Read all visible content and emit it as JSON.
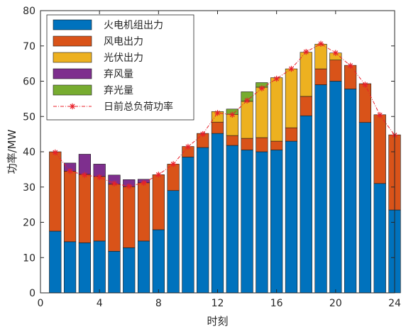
{
  "chart_data": {
    "type": "bar",
    "stacked": true,
    "xlabel": "时刻",
    "ylabel": "功率/MW",
    "xlim": [
      0,
      24
    ],
    "ylim": [
      0,
      80
    ],
    "xticks": [
      0,
      4,
      8,
      12,
      16,
      20,
      24
    ],
    "yticks": [
      0,
      10,
      20,
      30,
      40,
      50,
      60,
      70,
      80
    ],
    "grid": false,
    "legend_position": "top-left",
    "x": [
      1,
      2,
      3,
      4,
      5,
      6,
      7,
      8,
      9,
      10,
      11,
      12,
      13,
      14,
      15,
      16,
      17,
      18,
      19,
      20,
      21,
      22,
      23,
      24
    ],
    "series": [
      {
        "name": "火电机组出力",
        "color": "#0072BD",
        "values": [
          17.5,
          14.5,
          14.2,
          14.7,
          11.8,
          12.8,
          14.7,
          17.9,
          29.0,
          38.5,
          41.2,
          45.2,
          41.8,
          40.5,
          40.0,
          40.5,
          43.0,
          50.2,
          59.0,
          60.0,
          57.8,
          48.3,
          31.0,
          23.5
        ]
      },
      {
        "name": "风电出力",
        "color": "#D95319",
        "values": [
          22.5,
          20.0,
          19.4,
          18.3,
          19.0,
          17.3,
          16.5,
          15.6,
          7.5,
          3.0,
          4.0,
          3.2,
          2.8,
          3.3,
          4.0,
          2.5,
          3.8,
          5.5,
          4.5,
          6.0,
          6.7,
          11.0,
          19.5,
          21.3
        ]
      },
      {
        "name": "光伏出力",
        "color": "#EDB120",
        "values": [
          0,
          0,
          0,
          0,
          0,
          0,
          0,
          0,
          0,
          0,
          0,
          3.0,
          6.0,
          10.5,
          14.3,
          18.0,
          16.7,
          12.5,
          7.0,
          2.0,
          0,
          0,
          0,
          0
        ]
      },
      {
        "name": "弃风量",
        "color": "#7E2F8E",
        "values": [
          0,
          2.3,
          5.7,
          3.5,
          2.6,
          2.0,
          1.0,
          0,
          0,
          0,
          0,
          0,
          0,
          0,
          0,
          0,
          0,
          0,
          0,
          0,
          0,
          0,
          0,
          0
        ]
      },
      {
        "name": "弃光量",
        "color": "#77AC30",
        "values": [
          0,
          0,
          0,
          0,
          0,
          0,
          0,
          0,
          0,
          0,
          0,
          0,
          1.5,
          2.7,
          1.3,
          0,
          0,
          0,
          0,
          0,
          0,
          0,
          0,
          0
        ]
      }
    ],
    "line_series": {
      "name": "日前总负荷功率",
      "color": "#E8202A",
      "values": [
        39.8,
        34.5,
        33.4,
        32.8,
        31.0,
        30.2,
        31.2,
        33.5,
        36.5,
        41.4,
        45.0,
        51.0,
        50.5,
        54.5,
        58.0,
        60.7,
        63.5,
        68.3,
        70.6,
        68.0,
        64.4,
        59.0,
        50.4,
        44.7
      ]
    }
  }
}
